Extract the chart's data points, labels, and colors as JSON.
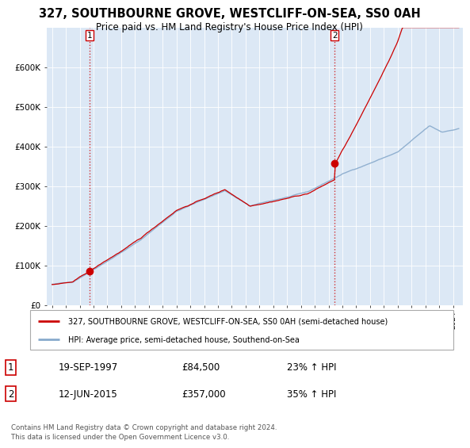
{
  "title": "327, SOUTHBOURNE GROVE, WESTCLIFF-ON-SEA, SS0 0AH",
  "subtitle": "Price paid vs. HM Land Registry's House Price Index (HPI)",
  "legend_line1": "327, SOUTHBOURNE GROVE, WESTCLIFF-ON-SEA, SS0 0AH (semi-detached house)",
  "legend_line2": "HPI: Average price, semi-detached house, Southend-on-Sea",
  "footer": "Contains HM Land Registry data © Crown copyright and database right 2024.\nThis data is licensed under the Open Government Licence v3.0.",
  "purchase1_date": "19-SEP-1997",
  "purchase1_price": 84500,
  "purchase1_hpi": "23% ↑ HPI",
  "purchase1_x": 1997.72,
  "purchase2_date": "12-JUN-2015",
  "purchase2_price": 357000,
  "purchase2_hpi": "35% ↑ HPI",
  "purchase2_x": 2015.44,
  "ylim": [
    0,
    700000
  ],
  "xlim": [
    1994.6,
    2024.7
  ],
  "price_color": "#cc0000",
  "hpi_color": "#88aacc",
  "vline_color": "#cc0000",
  "plot_bg_color": "#dce8f5",
  "yticks": [
    0,
    100000,
    200000,
    300000,
    400000,
    500000,
    600000
  ],
  "ylabels": [
    "£0",
    "£100K",
    "£200K",
    "£300K",
    "£400K",
    "£500K",
    "£600K"
  ]
}
